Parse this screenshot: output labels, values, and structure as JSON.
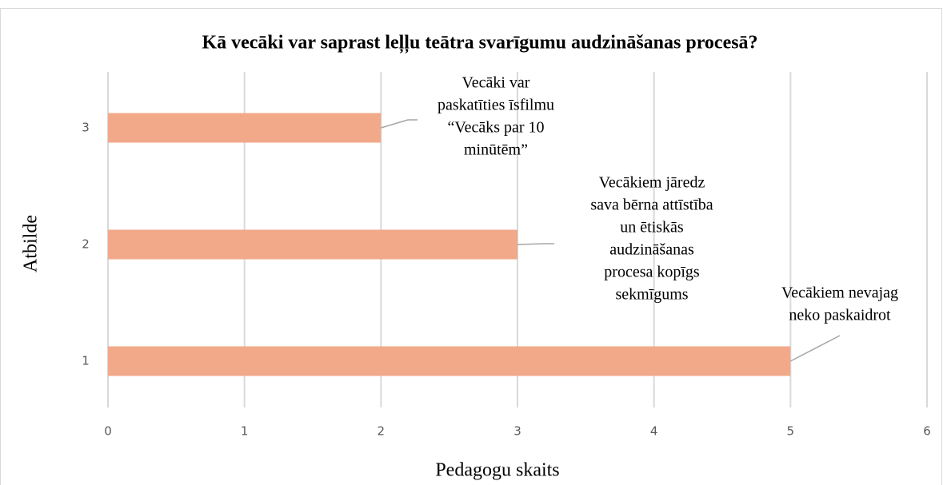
{
  "chart_data": {
    "type": "bar",
    "orientation": "horizontal",
    "title": "Kā vecāki var saprast leļļu teātra svarīgumu audzināšanas procesā?",
    "x_label": "Pedagogu skaits",
    "y_label": "Atbilde",
    "categories": [
      "1",
      "2",
      "3"
    ],
    "values": [
      5,
      3,
      2
    ],
    "color": "#f1a98a",
    "xlim": [
      0,
      6
    ],
    "xticks": [
      0,
      1,
      2,
      3,
      4,
      5,
      6
    ],
    "grid": true,
    "annotations": [
      [
        "Vecākiem nevajag",
        "neko paskaidrot"
      ],
      [
        "Vecākiem jāredz",
        "sava bērna attīstība",
        "un ētiskās",
        "audzināšanas",
        "procesa kopīgs",
        "sekmīgums"
      ],
      [
        "Vecāki var",
        "paskatīties īsfilmu",
        "“Vecāks par 10",
        "minūtēm”"
      ]
    ]
  }
}
